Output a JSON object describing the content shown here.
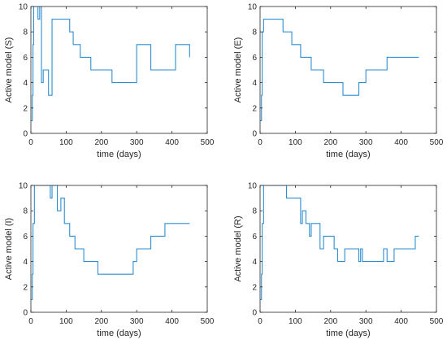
{
  "chart_data": [
    {
      "type": "line",
      "step": true,
      "xlabel": "time (days)",
      "ylabel": "Active model (S)",
      "xlim": [
        0,
        500
      ],
      "ylim": [
        0,
        10
      ],
      "xticks": [
        0,
        100,
        200,
        300,
        400,
        500
      ],
      "yticks": [
        0,
        2,
        4,
        6,
        8,
        10
      ],
      "grid": false,
      "color": "#2e8ecf",
      "x": [
        0,
        4,
        6,
        8,
        20,
        25,
        30,
        35,
        50,
        60,
        75,
        110,
        120,
        140,
        170,
        230,
        240,
        300,
        340,
        370,
        410,
        450
      ],
      "y": [
        1,
        3,
        7,
        10,
        9,
        10,
        4,
        5,
        3,
        9,
        9,
        8,
        7,
        6,
        5,
        4,
        4,
        7,
        5,
        5,
        7,
        6
      ]
    },
    {
      "type": "line",
      "step": true,
      "xlabel": "time (days)",
      "ylabel": "Active model (E)",
      "xlim": [
        0,
        500
      ],
      "ylim": [
        0,
        10
      ],
      "xticks": [
        0,
        100,
        200,
        300,
        400,
        500
      ],
      "yticks": [
        0,
        2,
        4,
        6,
        8,
        10
      ],
      "grid": false,
      "color": "#2e8ecf",
      "x": [
        0,
        4,
        6,
        10,
        65,
        90,
        115,
        145,
        180,
        235,
        280,
        300,
        360,
        450
      ],
      "y": [
        1,
        3,
        8,
        9,
        8,
        7,
        6,
        5,
        4,
        3,
        4,
        5,
        6,
        6
      ]
    },
    {
      "type": "line",
      "step": true,
      "xlabel": "time (days)",
      "ylabel": "Active model (I)",
      "xlim": [
        0,
        500
      ],
      "ylim": [
        0,
        10
      ],
      "xticks": [
        0,
        100,
        200,
        300,
        400,
        500
      ],
      "yticks": [
        0,
        2,
        4,
        6,
        8,
        10
      ],
      "grid": false,
      "color": "#2e8ecf",
      "x": [
        0,
        4,
        6,
        10,
        55,
        60,
        75,
        85,
        95,
        110,
        125,
        150,
        190,
        290,
        300,
        340,
        380,
        450
      ],
      "y": [
        1,
        3,
        7,
        10,
        9,
        10,
        8,
        9,
        7,
        6,
        5,
        4,
        3,
        4,
        5,
        6,
        7,
        7
      ]
    },
    {
      "type": "line",
      "step": true,
      "xlabel": "time (days)",
      "ylabel": "Active model (R)",
      "xlim": [
        0,
        500
      ],
      "ylim": [
        0,
        10
      ],
      "xticks": [
        0,
        100,
        200,
        300,
        400,
        500
      ],
      "yticks": [
        0,
        2,
        4,
        6,
        8,
        10
      ],
      "grid": false,
      "color": "#2e8ecf",
      "x": [
        0,
        4,
        6,
        10,
        75,
        115,
        120,
        130,
        140,
        145,
        170,
        180,
        210,
        220,
        240,
        280,
        285,
        290,
        300,
        350,
        360,
        380,
        440,
        450
      ],
      "y": [
        1,
        3,
        7,
        10,
        9,
        7,
        8,
        7,
        6,
        7,
        5,
        6,
        5,
        4,
        5,
        4,
        5,
        4,
        4,
        5,
        4,
        5,
        6,
        6
      ]
    }
  ]
}
